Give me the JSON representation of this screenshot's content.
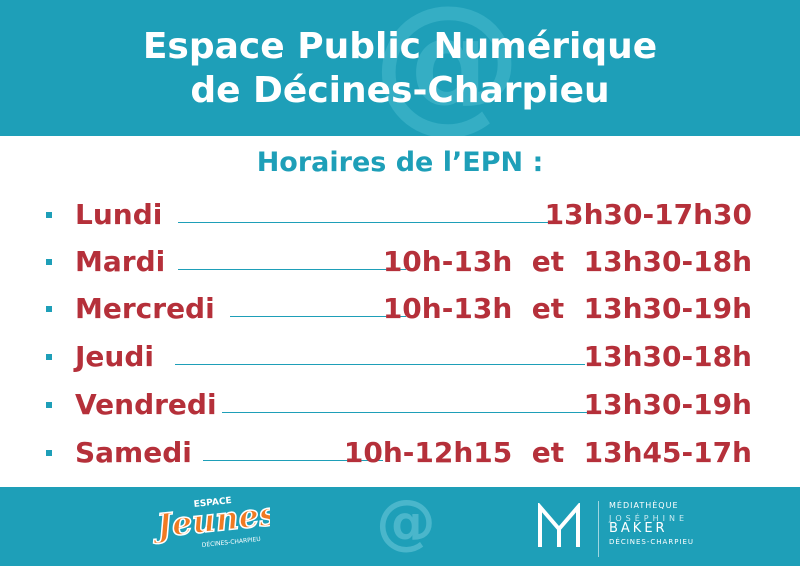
{
  "header": {
    "title_line1": "Espace Public Numérique",
    "title_line2": "de Décines-Charpieu",
    "watermark_icon": "at-sign-icon"
  },
  "subtitle": "Horaires de l’EPN :",
  "schedule": [
    {
      "day": "Lundi",
      "hours": "13h30-17h30"
    },
    {
      "day": "Mardi",
      "hours": "10h-13h  et  13h30-18h"
    },
    {
      "day": "Mercredi",
      "hours": "10h-13h  et  13h30-19h"
    },
    {
      "day": "Jeudi",
      "hours": "13h30-18h"
    },
    {
      "day": "Vendredi",
      "hours": "13h30-19h"
    },
    {
      "day": "Samedi",
      "hours": "10h-12h15  et  13h45-17h"
    }
  ],
  "footer": {
    "jeunes_logo": {
      "top": "ESPACE",
      "main": "Jeunes",
      "sub": "DÉCINES-CHARPIEU"
    },
    "center_icon": "at-sign-icon",
    "mediatheque": {
      "label": "MÉDIATHÈQUE",
      "name_small": "JOSÉPHINE",
      "name_big": "BAKER",
      "city": "DÉCINES-CHARPIEU"
    }
  },
  "colors": {
    "primary": "#1e9fb8",
    "accent": "#b5303a",
    "orange": "#f07a22"
  }
}
